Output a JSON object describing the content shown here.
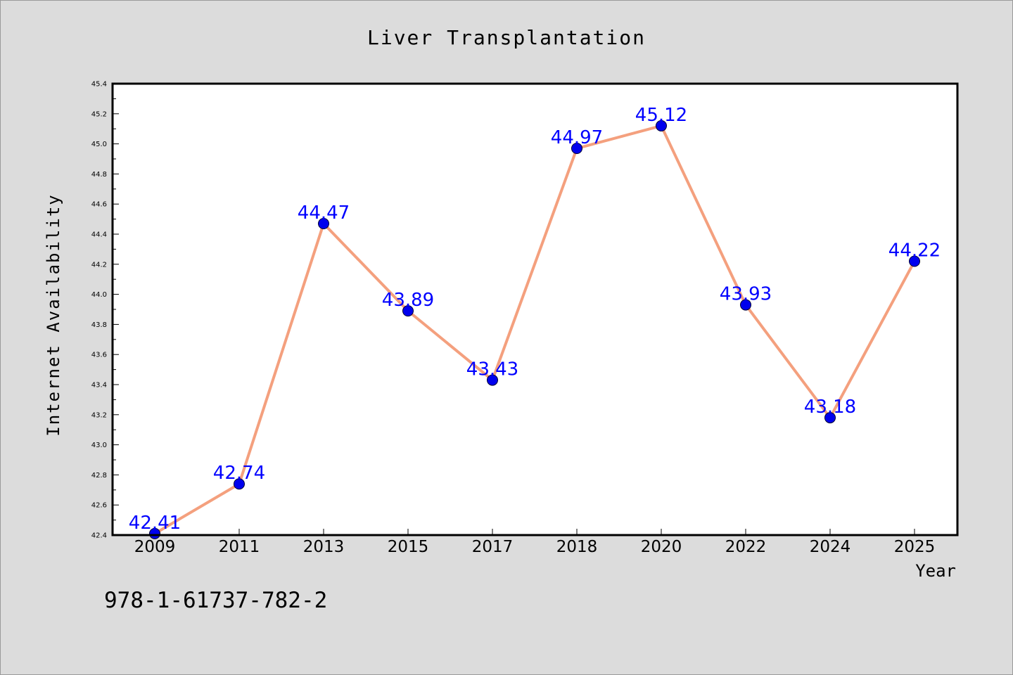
{
  "chart_data": {
    "type": "line",
    "title": "Liver Transplantation",
    "xlabel": "Year",
    "ylabel": "Internet Availability",
    "categories": [
      "2009",
      "2011",
      "2013",
      "2015",
      "2017",
      "2018",
      "2020",
      "2022",
      "2024",
      "2025"
    ],
    "values": [
      42.41,
      42.74,
      44.47,
      43.89,
      43.43,
      44.97,
      45.12,
      43.93,
      43.18,
      44.22
    ],
    "data_labels": [
      "42.41",
      "42.74",
      "44.47",
      "43.89",
      "43.43",
      "44.97",
      "45.12",
      "43.93",
      "43.18",
      "44.22"
    ],
    "ylim": [
      42.4,
      45.4
    ],
    "y_ticks": [
      "42.4",
      "42.6",
      "42.8",
      "43.0",
      "43.2",
      "43.4",
      "43.6",
      "43.8",
      "44.0",
      "44.2",
      "44.4",
      "44.6",
      "44.8",
      "45.0",
      "45.2",
      "45.4"
    ],
    "grid": false,
    "colors": {
      "line": "#f4a07e",
      "marker": "#0000ee",
      "label": "#0000ff"
    }
  },
  "footer_text": "978-1-61737-782-2"
}
